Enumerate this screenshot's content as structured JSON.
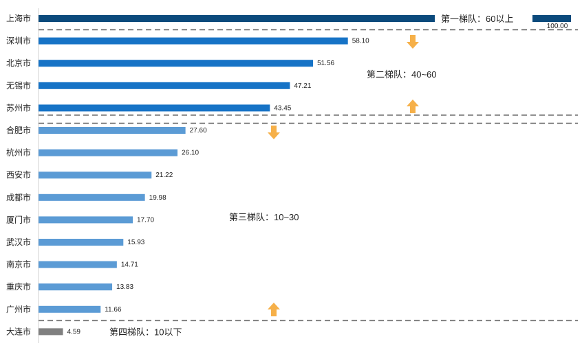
{
  "chart_data": {
    "type": "bar",
    "orientation": "horizontal",
    "categories": [
      "上海市",
      "深圳市",
      "北京市",
      "无锡市",
      "苏州市",
      "合肥市",
      "杭州市",
      "西安市",
      "成都市",
      "厦门市",
      "武汉市",
      "南京市",
      "重庆市",
      "广州市",
      "大连市"
    ],
    "values": [
      100.0,
      58.1,
      51.56,
      47.21,
      43.45,
      27.6,
      26.1,
      21.22,
      19.98,
      17.7,
      15.93,
      14.71,
      13.83,
      11.66,
      4.59
    ],
    "value_labels": [
      "100.00",
      "58.10",
      "51.56",
      "47.21",
      "43.45",
      "27.60",
      "26.10",
      "21.22",
      "19.98",
      "17.70",
      "15.93",
      "14.71",
      "13.83",
      "11.66",
      "4.59"
    ],
    "xlim": [
      0,
      100
    ],
    "grid": false,
    "tiers": [
      {
        "label": "第一梯队：60以上",
        "color": "#0b4a7c",
        "start": 0,
        "end": 0
      },
      {
        "label": "第二梯队：40~60",
        "color": "#1673c6",
        "start": 1,
        "end": 4
      },
      {
        "label": "第三梯队：10~30",
        "color": "#5b9bd5",
        "start": 5,
        "end": 13
      },
      {
        "label": "第四梯队：10以下",
        "color": "#808080",
        "start": 14,
        "end": 14
      }
    ],
    "arrow_color": "#f6b049",
    "divider_color": "#7f7f7f"
  }
}
